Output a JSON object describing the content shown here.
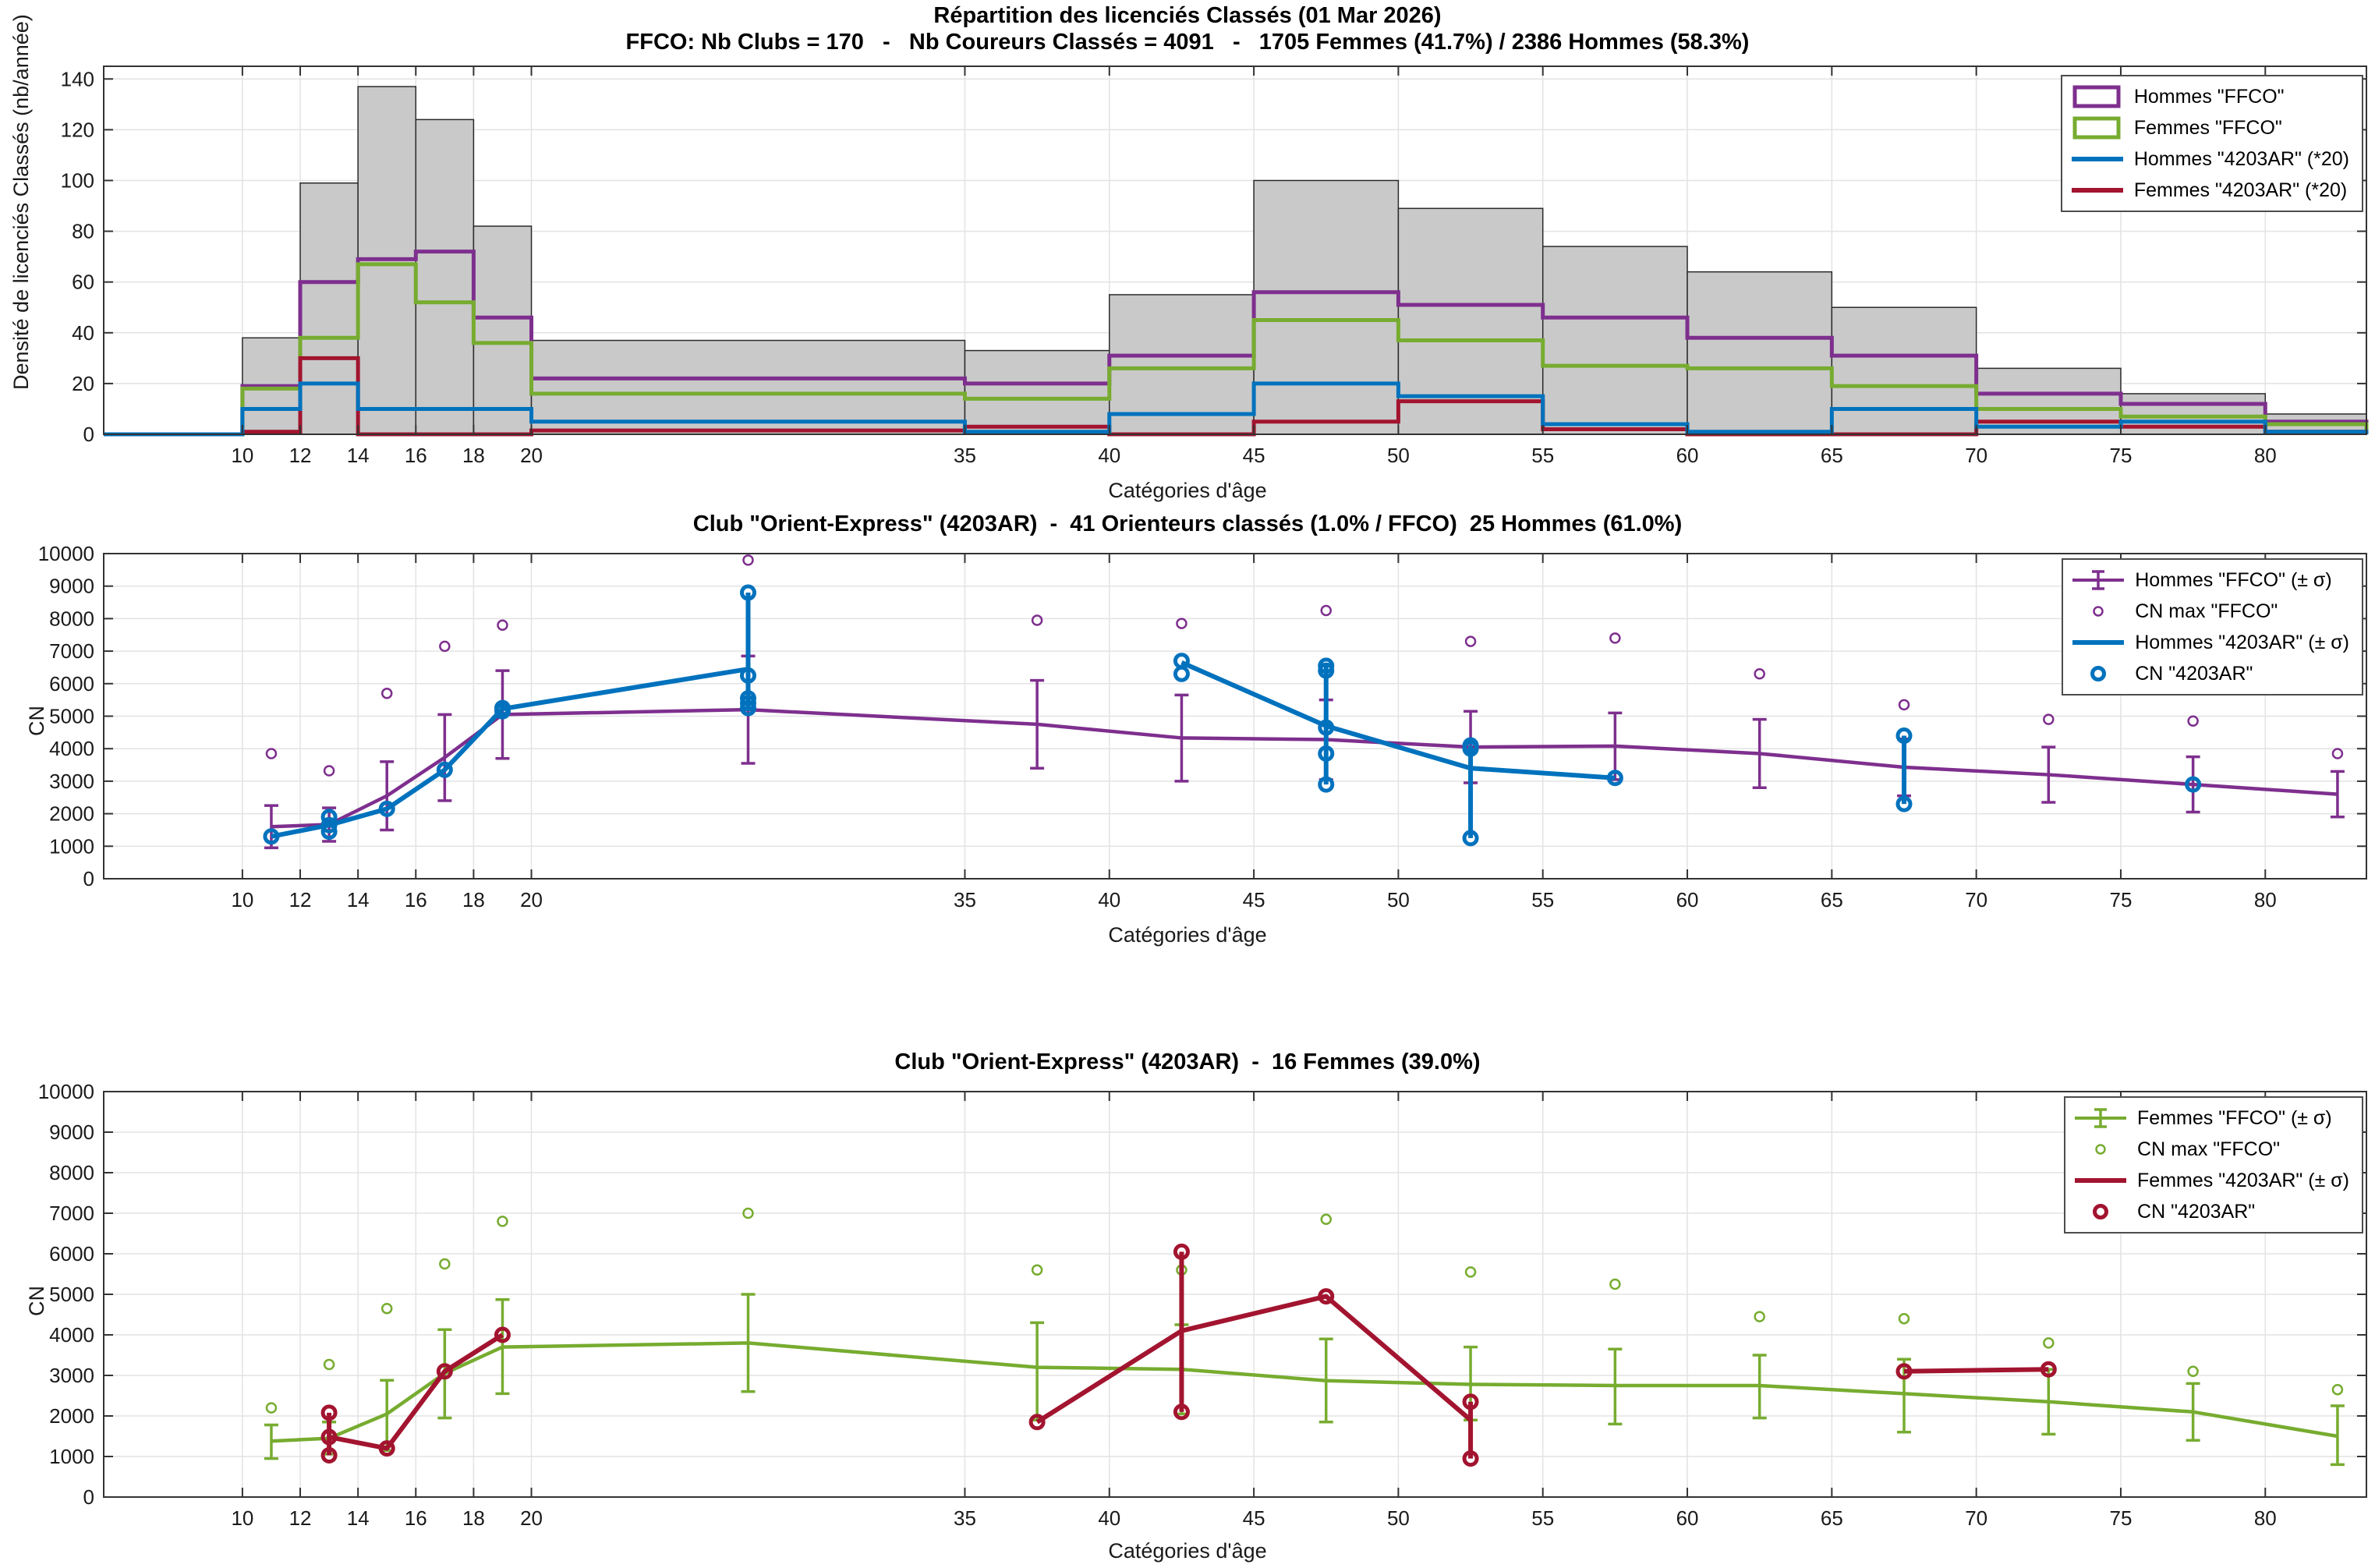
{
  "colors": {
    "hommes_ffco": "#7E2F8E",
    "femmes_ffco": "#77AC30",
    "hommes_club": "#0072BD",
    "femmes_club": "#A2142F",
    "hist_fill": "#C9C9C9",
    "hist_edge": "#2B2B2B",
    "grid": "#E3E3E3",
    "axis": "#333333",
    "text": "#1A1A1A"
  },
  "chart_data": [
    {
      "type": "bar",
      "subtype": "histogram-with-stairs",
      "title": "Répartition des licenciés Classés (01 Mar 2026)",
      "subtitle": "FFCO: Nb Clubs = 170   -   Nb Coureurs Classés = 4091   -   1705 Femmes (41.7%) / 2386 Hommes (58.3%)",
      "xlabel": "Catégories d'âge",
      "ylabel": "Densité de licenciés Classés (nb/année)",
      "xlim": [
        5.2,
        83.5
      ],
      "ylim": [
        0,
        145
      ],
      "xticks": [
        10,
        12,
        14,
        16,
        18,
        20,
        35,
        40,
        45,
        50,
        55,
        60,
        65,
        70,
        75,
        80
      ],
      "yticks": [
        0,
        20,
        40,
        60,
        80,
        100,
        120,
        140
      ],
      "grid": "on",
      "bin_edges": [
        10,
        12,
        14,
        16,
        18,
        20,
        35,
        40,
        45,
        50,
        55,
        60,
        65,
        70,
        75,
        80,
        83.5
      ],
      "series": [
        {
          "name": "Total FFCO (histogramme)",
          "style": "bars",
          "color_key": "hist_fill",
          "values": [
            38,
            99,
            137,
            124,
            82,
            37,
            33,
            55,
            100,
            89,
            74,
            64,
            50,
            26,
            16,
            8
          ]
        },
        {
          "name": "Hommes \"FFCO\"",
          "style": "stairs",
          "color_key": "hommes_ffco",
          "values": [
            19,
            60,
            69,
            72,
            46,
            22,
            20,
            31,
            56,
            51,
            46,
            38,
            31,
            16,
            12,
            5
          ]
        },
        {
          "name": "Femmes \"FFCO\"",
          "style": "stairs",
          "color_key": "femmes_ffco",
          "values": [
            18,
            38,
            67,
            52,
            36,
            16,
            14,
            26,
            45,
            37,
            27,
            26,
            19,
            10,
            7,
            4
          ]
        },
        {
          "name": "Femmes \"4203AR\" (*20)",
          "style": "stairs",
          "color_key": "femmes_club",
          "values": [
            1,
            30,
            0,
            0,
            0,
            1.5,
            3,
            0,
            5,
            13,
            2,
            0,
            0,
            5,
            3,
            1
          ]
        },
        {
          "name": "Hommes \"4203AR\" (*20)",
          "style": "stairs",
          "color_key": "hommes_club",
          "values": [
            10,
            20,
            10,
            10,
            10,
            5,
            1,
            8,
            20,
            15,
            4,
            1,
            10,
            3,
            5,
            1
          ]
        }
      ],
      "legend": {
        "position": "top-right",
        "entries": [
          {
            "label": "Hommes \"FFCO\"",
            "marker": "rect-outline",
            "color_key": "hommes_ffco"
          },
          {
            "label": "Femmes \"FFCO\"",
            "marker": "rect-outline",
            "color_key": "femmes_ffco"
          },
          {
            "label": "Hommes \"4203AR\" (*20)",
            "marker": "line",
            "color_key": "hommes_club"
          },
          {
            "label": "Femmes \"4203AR\" (*20)",
            "marker": "line",
            "color_key": "femmes_club"
          }
        ]
      }
    },
    {
      "type": "line",
      "subtype": "errorbar-scatter",
      "title": "Club \"Orient-Express\" (4203AR)  -  41 Orienteurs classés (1.0% / FFCO)  25 Hommes (61.0%)",
      "xlabel": "Catégories d'âge",
      "ylabel": "CN",
      "xlim": [
        5.2,
        83.5
      ],
      "ylim": [
        0,
        10000
      ],
      "xticks": [
        10,
        12,
        14,
        16,
        18,
        20,
        35,
        40,
        45,
        50,
        55,
        60,
        65,
        70,
        75,
        80
      ],
      "yticks": [
        0,
        1000,
        2000,
        3000,
        4000,
        5000,
        6000,
        7000,
        8000,
        9000,
        10000
      ],
      "grid": "on",
      "ffco": {
        "name": "Hommes \"FFCO\" (± σ)",
        "color_key": "hommes_ffco",
        "x": [
          11,
          13,
          15,
          17,
          19,
          27.5,
          37.5,
          42.5,
          47.5,
          52.5,
          57.5,
          62.5,
          67.5,
          72.5,
          77.5,
          82.5
        ],
        "mean": [
          1600,
          1670,
          2550,
          3730,
          5050,
          5200,
          4750,
          4330,
          4280,
          4050,
          4080,
          3850,
          3430,
          3200,
          2900,
          2600
        ],
        "lo": [
          950,
          1150,
          1500,
          2400,
          3700,
          3550,
          3400,
          3000,
          3050,
          2950,
          3050,
          2800,
          2550,
          2350,
          2050,
          1900
        ],
        "hi": [
          2250,
          2180,
          3600,
          5050,
          6400,
          6850,
          6100,
          5650,
          5500,
          5150,
          5100,
          4900,
          4300,
          4050,
          3750,
          3300
        ],
        "cn_max": [
          3850,
          3320,
          5700,
          7150,
          7800,
          9800,
          7950,
          7850,
          8250,
          7300,
          7400,
          6300,
          5350,
          4900,
          4850,
          3850
        ]
      },
      "club": {
        "name": "Hommes \"4203AR\" (± σ)",
        "color_key": "hommes_club",
        "segments": [
          [
            [
              11,
              1300
            ],
            [
              13,
              1650
            ],
            [
              15,
              2150
            ],
            [
              17,
              3350
            ],
            [
              19,
              5225
            ],
            [
              27.5,
              6450
            ]
          ],
          [
            [
              42.5,
              6650
            ],
            [
              47.5,
              4700
            ],
            [
              52.5,
              3400
            ],
            [
              57.5,
              3100
            ]
          ]
        ],
        "bars": [
          [
            27.5,
            5250,
            8800
          ],
          [
            47.5,
            2900,
            6550
          ],
          [
            52.5,
            1250,
            4100
          ],
          [
            67.5,
            2300,
            4400
          ]
        ],
        "points": [
          [
            11,
            1300
          ],
          [
            13,
            1900
          ],
          [
            13,
            1650
          ],
          [
            13,
            1450
          ],
          [
            15,
            2150
          ],
          [
            17,
            3350
          ],
          [
            19,
            5250
          ],
          [
            19,
            5150
          ],
          [
            27.5,
            8800
          ],
          [
            27.5,
            6250
          ],
          [
            27.5,
            5550
          ],
          [
            27.5,
            5400
          ],
          [
            27.5,
            5250
          ],
          [
            42.5,
            6700
          ],
          [
            42.5,
            6300
          ],
          [
            47.5,
            6550
          ],
          [
            47.5,
            6400
          ],
          [
            47.5,
            4650
          ],
          [
            47.5,
            3850
          ],
          [
            47.5,
            2900
          ],
          [
            52.5,
            4100
          ],
          [
            52.5,
            4000
          ],
          [
            52.5,
            1250
          ],
          [
            57.5,
            3100
          ],
          [
            67.5,
            4400
          ],
          [
            67.5,
            2300
          ],
          [
            77.5,
            2900
          ]
        ]
      },
      "legend": {
        "position": "top-right",
        "entries": [
          {
            "label": "Hommes \"FFCO\" (± σ)",
            "marker": "errorbar-line",
            "color_key": "hommes_ffco"
          },
          {
            "label": "CN max \"FFCO\"",
            "marker": "circle-small",
            "color_key": "hommes_ffco"
          },
          {
            "label": "Hommes \"4203AR\" (± σ)",
            "marker": "line",
            "color_key": "hommes_club"
          },
          {
            "label": "CN \"4203AR\"",
            "marker": "circle-bold",
            "color_key": "hommes_club"
          }
        ]
      }
    },
    {
      "type": "line",
      "subtype": "errorbar-scatter",
      "title": "Club \"Orient-Express\" (4203AR)  -  16 Femmes (39.0%)",
      "xlabel": "Catégories d'âge",
      "ylabel": "CN",
      "xlim": [
        5.2,
        83.5
      ],
      "ylim": [
        0,
        10000
      ],
      "xticks": [
        10,
        12,
        14,
        16,
        18,
        20,
        35,
        40,
        45,
        50,
        55,
        60,
        65,
        70,
        75,
        80
      ],
      "yticks": [
        0,
        1000,
        2000,
        3000,
        4000,
        5000,
        6000,
        7000,
        8000,
        9000,
        10000
      ],
      "grid": "on",
      "ffco": {
        "name": "Femmes \"FFCO\" (± σ)",
        "color_key": "femmes_ffco",
        "x": [
          11,
          13,
          15,
          17,
          19,
          27.5,
          37.5,
          42.5,
          47.5,
          52.5,
          57.5,
          62.5,
          67.5,
          72.5,
          77.5,
          82.5
        ],
        "mean": [
          1380,
          1450,
          2050,
          3050,
          3700,
          3800,
          3200,
          3150,
          2870,
          2780,
          2750,
          2750,
          2550,
          2350,
          2100,
          1500
        ],
        "lo": [
          950,
          1060,
          1150,
          1950,
          2550,
          2600,
          1900,
          2050,
          1850,
          1900,
          1800,
          1950,
          1600,
          1550,
          1400,
          800
        ],
        "hi": [
          1780,
          1850,
          2880,
          4130,
          4870,
          5000,
          4300,
          4250,
          3900,
          3700,
          3650,
          3500,
          3400,
          3150,
          2800,
          2250
        ],
        "cn_max": [
          2200,
          3270,
          4650,
          5750,
          6800,
          7000,
          5600,
          5600,
          6850,
          5550,
          5250,
          4450,
          4400,
          3800,
          3100,
          2650
        ]
      },
      "club": {
        "name": "Femmes \"4203AR\" (± σ)",
        "color_key": "femmes_club",
        "segments": [
          [
            [
              13,
              1480
            ],
            [
              15,
              1200
            ],
            [
              17,
              3100
            ],
            [
              19,
              4000
            ]
          ],
          [
            [
              37.5,
              1850
            ],
            [
              42.5,
              4100
            ],
            [
              47.5,
              4950
            ],
            [
              52.5,
              1900
            ]
          ],
          [
            [
              67.5,
              3100
            ],
            [
              72.5,
              3150
            ]
          ]
        ],
        "bars": [
          [
            13,
            1030,
            2080
          ],
          [
            42.5,
            2100,
            6050
          ],
          [
            52.5,
            950,
            2350
          ]
        ],
        "points": [
          [
            13,
            2080
          ],
          [
            13,
            1480
          ],
          [
            13,
            1030
          ],
          [
            15,
            1200
          ],
          [
            17,
            3100
          ],
          [
            19,
            4000
          ],
          [
            37.5,
            1850
          ],
          [
            42.5,
            6050
          ],
          [
            42.5,
            2100
          ],
          [
            47.5,
            4950
          ],
          [
            52.5,
            2350
          ],
          [
            52.5,
            950
          ],
          [
            67.5,
            3100
          ],
          [
            72.5,
            3150
          ]
        ]
      },
      "legend": {
        "position": "top-right",
        "entries": [
          {
            "label": "Femmes \"FFCO\" (± σ)",
            "marker": "errorbar-line",
            "color_key": "femmes_ffco"
          },
          {
            "label": "CN max \"FFCO\"",
            "marker": "circle-small",
            "color_key": "femmes_ffco"
          },
          {
            "label": "Femmes \"4203AR\" (± σ)",
            "marker": "line",
            "color_key": "femmes_club"
          },
          {
            "label": "CN \"4203AR\"",
            "marker": "circle-bold",
            "color_key": "femmes_club"
          }
        ]
      }
    }
  ]
}
